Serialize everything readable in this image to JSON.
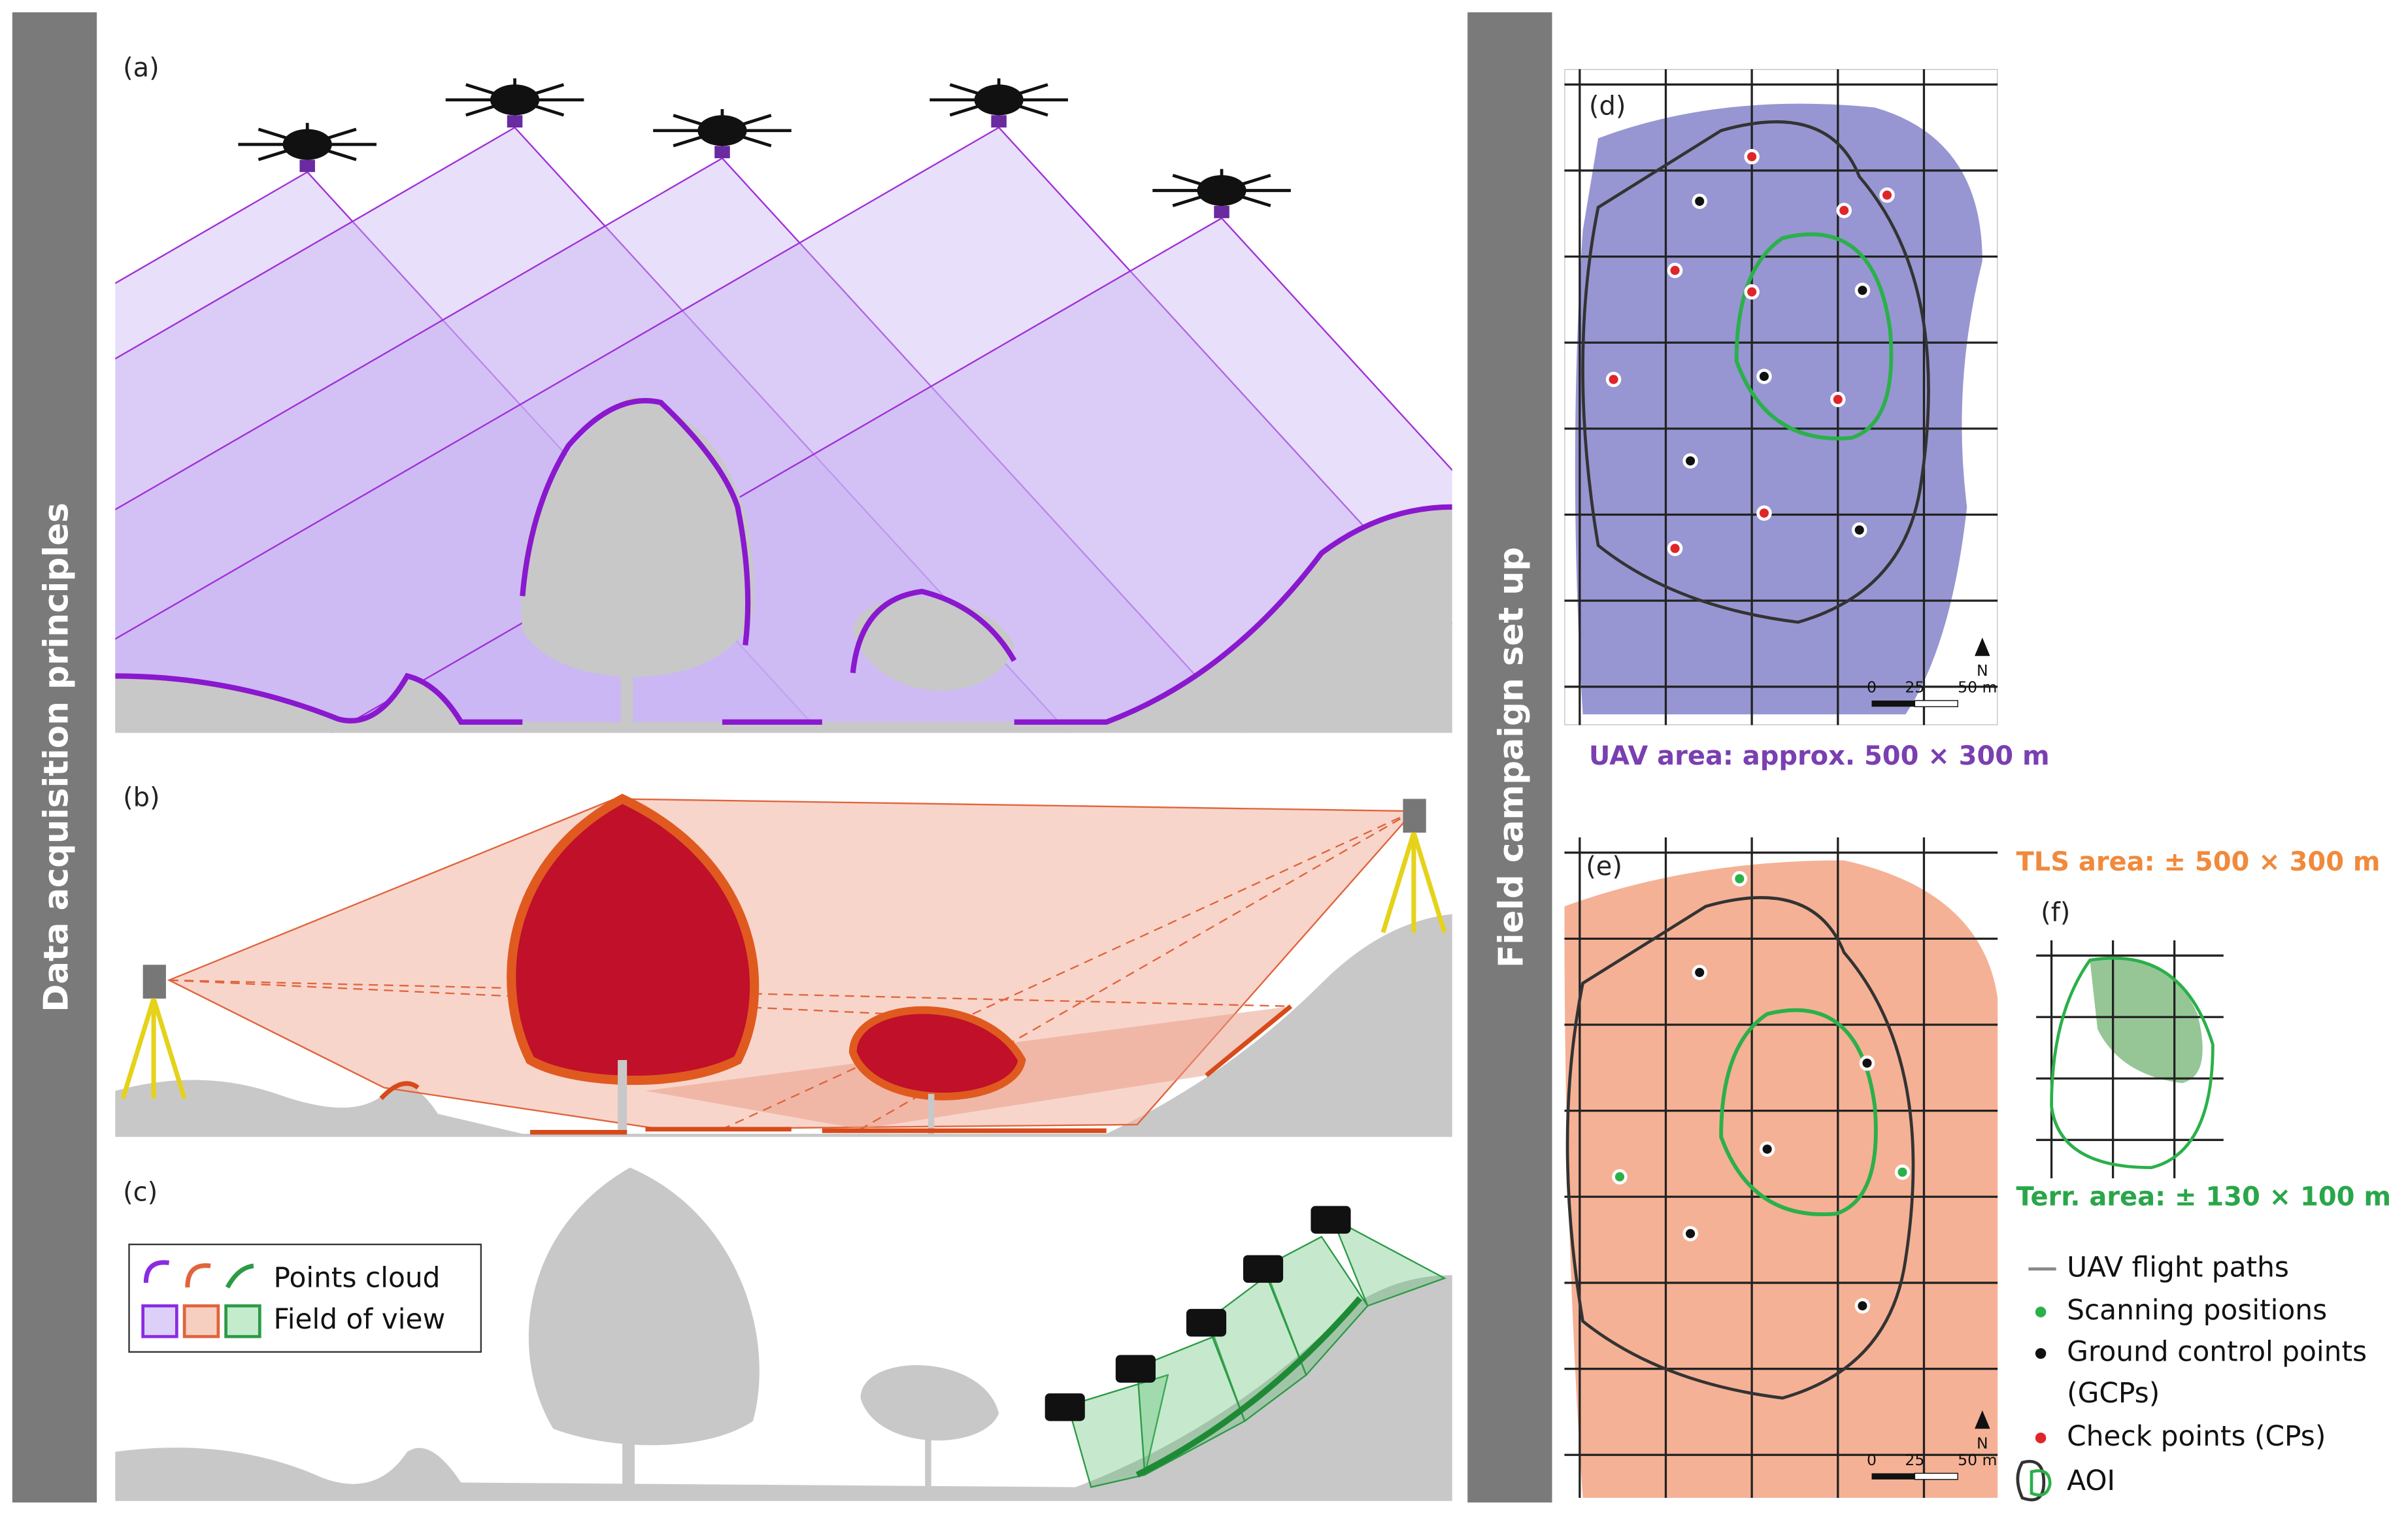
{
  "side_labels": {
    "left": "Data acquisition principles",
    "right": "Field campaign set up"
  },
  "panels": {
    "a": "(a)",
    "b": "(b)",
    "c": "(c)",
    "d": "(d)",
    "e": "(e)",
    "f": "(f)"
  },
  "legend_left": {
    "points": "Points cloud",
    "fov": "Field of view"
  },
  "map_d": {
    "caption": "UAV area: approx. 500 × 300 m",
    "north": "N",
    "scale": [
      "0",
      "25",
      "50 m"
    ]
  },
  "map_e": {
    "caption": "TLS area: ± 500 × 300 m",
    "north": "N",
    "scale": [
      "0",
      "25",
      "50 m"
    ]
  },
  "map_f": {
    "caption": "Terr. area: ± 130 × 100 m"
  },
  "legend_right": {
    "items": [
      {
        "lines": [
          "UAV flight paths"
        ]
      },
      {
        "lines": [
          "Scanning positions"
        ]
      },
      {
        "lines": [
          "Ground control points",
          "(GCPs)"
        ]
      },
      {
        "lines": [
          "Check points (CPs)"
        ]
      },
      {
        "lines": [
          "AOI"
        ]
      }
    ]
  }
}
